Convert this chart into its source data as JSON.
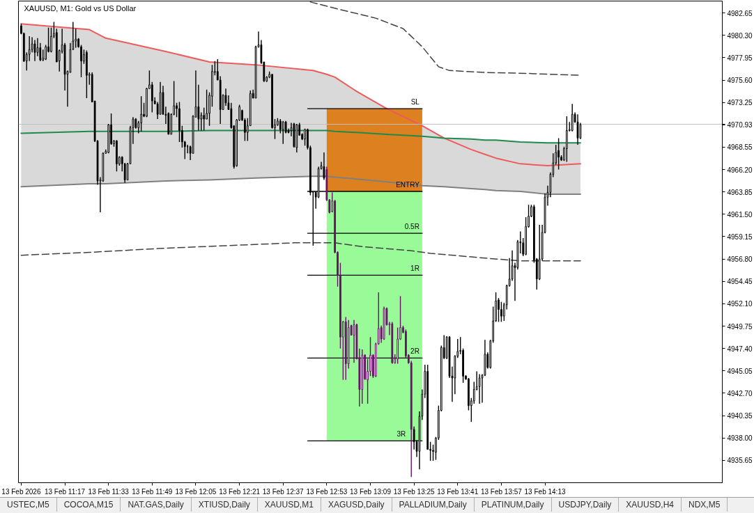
{
  "chart_data": {
    "type": "candlestick",
    "title": "XAUUSD, M1: Gold vs US Dollar",
    "x": [
      "2026-02-13T11:01",
      "2026-02-13T11:02",
      "2026-02-13T11:03",
      "2026-02-13T11:04",
      "2026-02-13T11:05",
      "2026-02-13T11:06",
      "2026-02-13T11:07",
      "2026-02-13T11:08",
      "2026-02-13T11:09",
      "2026-02-13T11:10",
      "2026-02-13T11:11",
      "2026-02-13T11:12",
      "2026-02-13T11:13",
      "2026-02-13T11:14",
      "2026-02-13T11:15",
      "2026-02-13T11:16",
      "2026-02-13T11:17",
      "2026-02-13T11:18",
      "2026-02-13T11:19",
      "2026-02-13T11:20",
      "2026-02-13T11:21",
      "2026-02-13T11:22",
      "2026-02-13T11:23",
      "2026-02-13T11:24",
      "2026-02-13T11:25",
      "2026-02-13T11:26",
      "2026-02-13T11:27",
      "2026-02-13T11:28",
      "2026-02-13T11:29",
      "2026-02-13T11:30",
      "2026-02-13T11:31",
      "2026-02-13T11:32",
      "2026-02-13T11:33",
      "2026-02-13T11:34",
      "2026-02-13T11:35",
      "2026-02-13T11:36",
      "2026-02-13T11:37",
      "2026-02-13T11:38",
      "2026-02-13T11:39",
      "2026-02-13T11:40",
      "2026-02-13T11:41",
      "2026-02-13T11:42",
      "2026-02-13T11:43",
      "2026-02-13T11:44",
      "2026-02-13T11:45",
      "2026-02-13T11:46",
      "2026-02-13T11:47",
      "2026-02-13T11:48",
      "2026-02-13T11:49",
      "2026-02-13T11:50",
      "2026-02-13T11:51",
      "2026-02-13T11:52",
      "2026-02-13T11:53",
      "2026-02-13T11:54",
      "2026-02-13T11:55",
      "2026-02-13T11:56",
      "2026-02-13T11:57",
      "2026-02-13T11:58",
      "2026-02-13T11:59",
      "2026-02-13T12:00",
      "2026-02-13T12:01",
      "2026-02-13T12:02",
      "2026-02-13T12:03",
      "2026-02-13T12:04",
      "2026-02-13T12:05",
      "2026-02-13T12:06",
      "2026-02-13T12:07",
      "2026-02-13T12:08",
      "2026-02-13T12:09",
      "2026-02-13T12:10",
      "2026-02-13T12:11",
      "2026-02-13T12:12",
      "2026-02-13T12:13",
      "2026-02-13T12:14",
      "2026-02-13T12:15",
      "2026-02-13T12:16",
      "2026-02-13T12:17",
      "2026-02-13T12:18",
      "2026-02-13T12:19",
      "2026-02-13T12:20",
      "2026-02-13T12:21",
      "2026-02-13T12:22",
      "2026-02-13T12:23",
      "2026-02-13T12:24",
      "2026-02-13T12:25",
      "2026-02-13T12:26",
      "2026-02-13T12:27",
      "2026-02-13T12:28",
      "2026-02-13T12:29",
      "2026-02-13T12:30",
      "2026-02-13T12:31",
      "2026-02-13T12:32",
      "2026-02-13T12:33",
      "2026-02-13T12:34",
      "2026-02-13T12:35",
      "2026-02-13T12:36",
      "2026-02-13T12:37",
      "2026-02-13T12:38",
      "2026-02-13T12:39",
      "2026-02-13T12:40",
      "2026-02-13T12:41",
      "2026-02-13T12:42",
      "2026-02-13T12:43",
      "2026-02-13T12:44",
      "2026-02-13T12:45",
      "2026-02-13T12:46",
      "2026-02-13T12:47",
      "2026-02-13T12:48",
      "2026-02-13T12:49",
      "2026-02-13T12:50",
      "2026-02-13T12:51",
      "2026-02-13T12:52",
      "2026-02-13T12:53",
      "2026-02-13T12:54",
      "2026-02-13T12:55",
      "2026-02-13T12:56",
      "2026-02-13T12:57",
      "2026-02-13T12:58",
      "2026-02-13T12:59",
      "2026-02-13T13:00",
      "2026-02-13T13:01",
      "2026-02-13T13:02",
      "2026-02-13T13:03",
      "2026-02-13T13:04",
      "2026-02-13T13:05",
      "2026-02-13T13:06",
      "2026-02-13T13:07",
      "2026-02-13T13:08",
      "2026-02-13T13:09",
      "2026-02-13T13:10",
      "2026-02-13T13:11",
      "2026-02-13T13:12",
      "2026-02-13T13:13",
      "2026-02-13T13:14",
      "2026-02-13T13:15",
      "2026-02-13T13:16",
      "2026-02-13T13:17",
      "2026-02-13T13:18",
      "2026-02-13T13:19",
      "2026-02-13T13:20",
      "2026-02-13T13:21",
      "2026-02-13T13:22",
      "2026-02-13T13:23",
      "2026-02-13T13:24",
      "2026-02-13T13:25",
      "2026-02-13T13:26",
      "2026-02-13T13:27",
      "2026-02-13T13:28",
      "2026-02-13T13:29",
      "2026-02-13T13:30",
      "2026-02-13T13:31",
      "2026-02-13T13:32",
      "2026-02-13T13:33",
      "2026-02-13T13:34",
      "2026-02-13T13:35",
      "2026-02-13T13:36",
      "2026-02-13T13:37",
      "2026-02-13T13:38",
      "2026-02-13T13:39",
      "2026-02-13T13:40",
      "2026-02-13T13:41",
      "2026-02-13T13:42",
      "2026-02-13T13:43",
      "2026-02-13T13:44",
      "2026-02-13T13:45",
      "2026-02-13T13:46",
      "2026-02-13T13:47",
      "2026-02-13T13:48",
      "2026-02-13T13:49",
      "2026-02-13T13:50",
      "2026-02-13T13:51",
      "2026-02-13T13:52",
      "2026-02-13T13:53",
      "2026-02-13T13:54",
      "2026-02-13T13:55",
      "2026-02-13T13:56",
      "2026-02-13T13:57",
      "2026-02-13T13:58",
      "2026-02-13T13:59",
      "2026-02-13T14:00",
      "2026-02-13T14:01",
      "2026-02-13T14:02",
      "2026-02-13T14:03",
      "2026-02-13T14:04",
      "2026-02-13T14:05",
      "2026-02-13T14:06",
      "2026-02-13T14:07",
      "2026-02-13T14:08",
      "2026-02-13T14:09",
      "2026-02-13T14:10",
      "2026-02-13T14:11",
      "2026-02-13T14:12",
      "2026-02-13T14:13",
      "2026-02-13T14:14",
      "2026-02-13T14:15",
      "2026-02-13T14:16",
      "2026-02-13T14:17",
      "2026-02-13T14:18",
      "2026-02-13T14:19",
      "2026-02-13T14:20",
      "2026-02-13T14:21",
      "2026-02-13T14:22",
      "2026-02-13T14:23",
      "2026-02-13T14:24",
      "2026-02-13T14:25",
      "2026-02-13T14:26"
    ],
    "ohlc": [
      [
        4981.3,
        4981.5,
        4980.4,
        4980.5
      ],
      [
        4980.5,
        4980.6,
        4977.5,
        4977.6
      ],
      [
        4977.6,
        4978.5,
        4976.6,
        4978.3
      ],
      [
        4978.3,
        4980.2,
        4977.6,
        4978.8
      ],
      [
        4978.8,
        4980.1,
        4978.5,
        4979.4
      ],
      [
        4979.4,
        4979.8,
        4977.6,
        4978.5
      ],
      [
        4978.5,
        4980.0,
        4978.1,
        4979.0
      ],
      [
        4979.0,
        4979.5,
        4977.6,
        4977.7
      ],
      [
        4977.7,
        4978.8,
        4977.6,
        4977.9
      ],
      [
        4977.8,
        4979.3,
        4977.7,
        4979.1
      ],
      [
        4979.1,
        4981.1,
        4978.5,
        4978.6
      ],
      [
        4978.6,
        4981.1,
        4978.5,
        4980.2
      ],
      [
        4980.2,
        4981.7,
        4980.0,
        4980.5
      ],
      [
        4980.6,
        4981.0,
        4977.5,
        4977.5
      ],
      [
        4977.6,
        4978.8,
        4976.5,
        4978.7
      ],
      [
        4978.6,
        4981.0,
        4978.4,
        4979.3
      ],
      [
        4979.3,
        4979.5,
        4974.5,
        4976.2
      ],
      [
        4976.2,
        4976.6,
        4972.8,
        4976.5
      ],
      [
        4976.4,
        4979.5,
        4976.4,
        4978.8
      ],
      [
        4978.8,
        4981.7,
        4978.8,
        4979.7
      ],
      [
        4979.7,
        4981.0,
        4979.0,
        4979.9
      ],
      [
        4979.9,
        4980.0,
        4979.0,
        4979.1
      ],
      [
        4979.1,
        4979.3,
        4975.9,
        4977.6
      ],
      [
        4977.6,
        4978.8,
        4977.3,
        4978.3
      ],
      [
        4978.5,
        4978.7,
        4973.7,
        4976.1
      ],
      [
        4976.1,
        4976.4,
        4975.1,
        4976.2
      ],
      [
        4976.2,
        4976.4,
        4973.3,
        4973.3
      ],
      [
        4973.4,
        4973.4,
        4969.1,
        4969.2
      ],
      [
        4969.2,
        4969.3,
        4964.6,
        4965.0
      ],
      [
        4965.0,
        4965.4,
        4961.7,
        4965.1
      ],
      [
        4965.0,
        4968.0,
        4964.9,
        4967.9
      ],
      [
        4967.9,
        4968.3,
        4967.9,
        4968.1
      ],
      [
        4968.0,
        4971.0,
        4967.9,
        4970.9
      ],
      [
        4970.9,
        4972.1,
        4968.8,
        4968.9
      ],
      [
        4968.9,
        4969.3,
        4968.6,
        4969.2
      ],
      [
        4969.2,
        4969.3,
        4966.0,
        4966.8
      ],
      [
        4966.8,
        4967.6,
        4966.6,
        4967.5
      ],
      [
        4967.5,
        4967.6,
        4966.0,
        4966.8
      ],
      [
        4966.8,
        4966.9,
        4964.8,
        4965.1
      ],
      [
        4965.1,
        4966.9,
        4965.1,
        4966.8
      ],
      [
        4966.8,
        4970.8,
        4966.8,
        4970.6
      ],
      [
        4970.6,
        4971.7,
        4968.9,
        4971.5
      ],
      [
        4971.5,
        4971.6,
        4970.5,
        4970.6
      ],
      [
        4970.6,
        4971.3,
        4970.0,
        4971.1
      ],
      [
        4971.1,
        4973.9,
        4970.2,
        4972.0
      ],
      [
        4972.0,
        4973.2,
        4971.7,
        4971.8
      ],
      [
        4971.8,
        4974.8,
        4971.7,
        4974.7
      ],
      [
        4974.7,
        4976.6,
        4974.7,
        4975.1
      ],
      [
        4975.1,
        4975.4,
        4972.2,
        4973.4
      ],
      [
        4973.4,
        4973.8,
        4973.1,
        4973.1
      ],
      [
        4973.1,
        4973.3,
        4971.5,
        4972.0
      ],
      [
        4972.0,
        4975.4,
        4972.0,
        4974.3
      ],
      [
        4974.3,
        4975.0,
        4972.0,
        4972.0
      ],
      [
        4972.0,
        4972.8,
        4971.0,
        4971.9
      ],
      [
        4972.1,
        4972.2,
        4969.9,
        4969.9
      ],
      [
        4969.9,
        4972.1,
        4969.9,
        4972.0
      ],
      [
        4972.0,
        4975.5,
        4971.9,
        4972.9
      ],
      [
        4972.9,
        4973.2,
        4971.7,
        4972.6
      ],
      [
        4972.6,
        4973.3,
        4969.1,
        4970.3
      ],
      [
        4970.3,
        4970.8,
        4968.5,
        4969.1
      ],
      [
        4969.1,
        4969.2,
        4967.3,
        4968.6
      ],
      [
        4968.6,
        4968.8,
        4967.9,
        4968.6
      ],
      [
        4968.6,
        4968.7,
        4967.2,
        4967.9
      ],
      [
        4967.9,
        4971.9,
        4967.9,
        4971.8
      ],
      [
        4971.7,
        4976.6,
        4971.7,
        4972.8
      ],
      [
        4972.8,
        4975.1,
        4970.3,
        4971.5
      ],
      [
        4971.5,
        4972.2,
        4970.3,
        4971.9
      ],
      [
        4971.9,
        4972.7,
        4970.3,
        4971.5
      ],
      [
        4971.5,
        4974.6,
        4971.5,
        4972.1
      ],
      [
        4972.1,
        4974.3,
        4970.8,
        4974.0
      ],
      [
        4973.9,
        4977.2,
        4972.8,
        4976.5
      ],
      [
        4976.4,
        4977.6,
        4976.1,
        4976.5
      ],
      [
        4976.5,
        4977.8,
        4975.6,
        4975.6
      ],
      [
        4975.6,
        4976.0,
        4971.0,
        4972.5
      ],
      [
        4972.5,
        4974.1,
        4972.5,
        4974.0
      ],
      [
        4974.0,
        4974.7,
        4972.9,
        4973.2
      ],
      [
        4973.2,
        4974.0,
        4972.5,
        4972.5
      ],
      [
        4972.6,
        4973.2,
        4970.5,
        4970.6
      ],
      [
        4970.8,
        4970.8,
        4966.3,
        4966.5
      ],
      [
        4966.6,
        4971.5,
        4966.5,
        4971.4
      ],
      [
        4971.4,
        4973.0,
        4971.3,
        4972.8
      ],
      [
        4972.4,
        4972.5,
        4971.3,
        4971.4
      ],
      [
        4971.4,
        4971.6,
        4969.2,
        4970.1
      ],
      [
        4970.1,
        4971.6,
        4969.2,
        4970.8
      ],
      [
        4970.8,
        4974.5,
        4970.8,
        4974.2
      ],
      [
        4974.2,
        4974.6,
        4973.7,
        4973.7
      ],
      [
        4973.7,
        4979.2,
        4973.7,
        4979.1
      ],
      [
        4979.1,
        4980.7,
        4979.0,
        4979.3
      ],
      [
        4979.3,
        4979.8,
        4977.3,
        4977.4
      ],
      [
        4977.5,
        4977.5,
        4975.4,
        4975.5
      ],
      [
        4975.5,
        4976.0,
        4975.4,
        4975.9
      ],
      [
        4975.9,
        4976.5,
        4975.8,
        4976.2
      ],
      [
        4976.2,
        4976.2,
        4970.5,
        4970.6
      ],
      [
        4970.6,
        4971.5,
        4969.4,
        4970.9
      ],
      [
        4970.9,
        4971.6,
        4970.8,
        4971.3
      ],
      [
        4971.3,
        4971.5,
        4970.0,
        4970.4
      ],
      [
        4970.4,
        4971.3,
        4968.9,
        4971.2
      ],
      [
        4971.2,
        4971.3,
        4970.0,
        4970.1
      ],
      [
        4970.3,
        4970.5,
        4970.0,
        4970.1
      ],
      [
        4970.3,
        4971.1,
        4969.7,
        4970.6
      ],
      [
        4971.0,
        4971.1,
        4968.5,
        4968.6
      ],
      [
        4968.5,
        4971.0,
        4968.0,
        4970.9
      ],
      [
        4970.9,
        4971.1,
        4969.8,
        4969.8
      ],
      [
        4969.9,
        4970.0,
        4969.3,
        4969.4
      ],
      [
        4969.4,
        4970.5,
        4968.7,
        4970.4
      ],
      [
        4970.4,
        4970.5,
        4968.3,
        4968.5
      ],
      [
        4968.5,
        4968.7,
        4963.5,
        4963.8
      ],
      [
        4963.8,
        4963.9,
        4958.2,
        4963.9
      ],
      [
        4963.8,
        4963.9,
        4962.1,
        4963.3
      ],
      [
        4963.3,
        4966.5,
        4963.2,
        4966.3
      ],
      [
        4966.3,
        4967.0,
        4966.2,
        4966.6
      ],
      [
        4966.5,
        4968.0,
        4965.1,
        4965.3
      ],
      [
        4966.2,
        4966.5,
        4962.9,
        4963.0
      ],
      [
        4963.0,
        4963.1,
        4961.6,
        4961.7
      ],
      [
        4961.8,
        4963.8,
        4961.7,
        4962.9
      ],
      [
        4962.9,
        4963.0,
        4957.4,
        4957.5
      ],
      [
        4957.5,
        4957.6,
        4953.9,
        4955.1
      ],
      [
        4955.1,
        4956.4,
        4947.4,
        4948.6
      ],
      [
        4948.6,
        4950.3,
        4944.1,
        4950.2
      ],
      [
        4950.2,
        4950.7,
        4944.1,
        4945.8
      ],
      [
        4945.8,
        4950.4,
        4945.3,
        4949.6
      ],
      [
        4949.8,
        4949.9,
        4948.8,
        4948.8
      ],
      [
        4948.8,
        4950.4,
        4945.9,
        4949.9
      ],
      [
        4949.9,
        4950.0,
        4946.3,
        4946.3
      ],
      [
        4946.4,
        4947.4,
        4941.3,
        4943.1
      ],
      [
        4943.1,
        4947.3,
        4941.6,
        4946.7
      ],
      [
        4946.7,
        4946.8,
        4944.1,
        4944.2
      ],
      [
        4944.1,
        4946.3,
        4941.6,
        4945.0
      ],
      [
        4945.0,
        4948.6,
        4944.5,
        4946.7
      ],
      [
        4946.7,
        4946.8,
        4944.3,
        4944.5
      ],
      [
        4944.5,
        4948.0,
        4944.4,
        4947.9
      ],
      [
        4947.9,
        4953.3,
        4947.8,
        4949.5
      ],
      [
        4949.6,
        4949.8,
        4948.0,
        4948.4
      ],
      [
        4948.4,
        4951.8,
        4948.3,
        4951.6
      ],
      [
        4951.6,
        4951.7,
        4949.8,
        4949.9
      ],
      [
        4949.9,
        4950.2,
        4948.8,
        4950.0
      ],
      [
        4950.0,
        4950.2,
        4945.8,
        4945.9
      ],
      [
        4945.9,
        4946.8,
        4945.8,
        4946.3
      ],
      [
        4946.3,
        4949.6,
        4945.8,
        4948.4
      ],
      [
        4948.4,
        4952.9,
        4948.3,
        4949.6
      ],
      [
        4949.6,
        4949.8,
        4949.0,
        4949.1
      ],
      [
        4949.2,
        4949.4,
        4946.4,
        4946.6
      ],
      [
        4946.7,
        4946.8,
        4945.8,
        4945.9
      ],
      [
        4945.9,
        4946.1,
        4933.9,
        4938.9
      ],
      [
        4938.9,
        4939.2,
        4936.8,
        4937.6
      ],
      [
        4937.6,
        4937.8,
        4936.0,
        4936.6
      ],
      [
        4936.6,
        4940.8,
        4934.7,
        4940.3
      ],
      [
        4940.3,
        4943.1,
        4939.9,
        4942.6
      ],
      [
        4942.6,
        4945.7,
        4942.2,
        4945.0
      ],
      [
        4945.0,
        4945.7,
        4936.8,
        4936.8
      ],
      [
        4936.8,
        4937.6,
        4935.6,
        4936.7
      ],
      [
        4936.7,
        4937.3,
        4935.6,
        4936.6
      ],
      [
        4936.5,
        4938.1,
        4935.7,
        4938.0
      ],
      [
        4938.0,
        4941.4,
        4937.8,
        4940.9
      ],
      [
        4940.9,
        4947.7,
        4940.8,
        4947.5
      ],
      [
        4947.5,
        4948.8,
        4946.3,
        4946.4
      ],
      [
        4946.4,
        4948.7,
        4946.3,
        4948.6
      ],
      [
        4948.6,
        4948.7,
        4944.3,
        4944.5
      ],
      [
        4944.5,
        4945.5,
        4941.8,
        4944.3
      ],
      [
        4944.3,
        4946.7,
        4942.6,
        4946.6
      ],
      [
        4946.6,
        4948.4,
        4946.4,
        4947.1
      ],
      [
        4947.1,
        4948.6,
        4946.8,
        4947.2
      ],
      [
        4947.2,
        4947.4,
        4943.8,
        4944.5
      ],
      [
        4944.5,
        4944.6,
        4944.1,
        4944.2
      ],
      [
        4944.2,
        4944.3,
        4940.9,
        4941.4
      ],
      [
        4941.4,
        4942.2,
        4939.7,
        4941.9
      ],
      [
        4941.9,
        4943.9,
        4941.6,
        4943.1
      ],
      [
        4943.1,
        4945.0,
        4943.0,
        4943.4
      ],
      [
        4943.4,
        4944.7,
        4941.6,
        4944.3
      ],
      [
        4944.3,
        4944.7,
        4941.7,
        4944.6
      ],
      [
        4944.6,
        4948.3,
        4944.5,
        4946.8
      ],
      [
        4946.8,
        4947.0,
        4945.3,
        4945.4
      ],
      [
        4945.4,
        4948.3,
        4945.3,
        4948.2
      ],
      [
        4948.2,
        4951.8,
        4948.0,
        4950.3
      ],
      [
        4950.3,
        4953.3,
        4950.2,
        4952.4
      ],
      [
        4952.5,
        4952.7,
        4950.2,
        4951.5
      ],
      [
        4951.5,
        4952.3,
        4950.2,
        4950.8
      ],
      [
        4950.8,
        4952.2,
        4950.3,
        4952.0
      ],
      [
        4952.0,
        4954.1,
        4951.5,
        4954.0
      ],
      [
        4954.0,
        4956.9,
        4953.9,
        4954.7
      ],
      [
        4954.7,
        4957.7,
        4954.5,
        4956.1
      ],
      [
        4956.1,
        4956.4,
        4952.4,
        4955.9
      ],
      [
        4955.9,
        4958.8,
        4955.7,
        4958.6
      ],
      [
        4958.6,
        4959.7,
        4957.4,
        4958.5
      ],
      [
        4958.5,
        4959.0,
        4957.1,
        4957.3
      ],
      [
        4957.3,
        4961.2,
        4957.2,
        4960.2
      ],
      [
        4960.2,
        4962.5,
        4960.1,
        4961.3
      ],
      [
        4961.3,
        4962.5,
        4961.2,
        4962.3
      ],
      [
        4962.3,
        4962.5,
        4956.4,
        4956.7
      ],
      [
        4956.8,
        4956.9,
        4953.6,
        4954.7
      ],
      [
        4954.7,
        4960.4,
        4954.6,
        4956.8
      ],
      [
        4956.8,
        4960.4,
        4956.6,
        4959.6
      ],
      [
        4959.6,
        4963.7,
        4959.5,
        4963.3
      ],
      [
        4963.3,
        4964.5,
        4962.4,
        4963.8
      ],
      [
        4963.8,
        4965.9,
        4963.3,
        4965.7
      ],
      [
        4965.7,
        4967.9,
        4965.4,
        4966.9
      ],
      [
        4966.9,
        4968.8,
        4966.7,
        4968.0
      ],
      [
        4968.2,
        4969.5,
        4966.2,
        4967.5
      ],
      [
        4967.5,
        4967.7,
        4967.1,
        4967.2
      ],
      [
        4967.2,
        4968.6,
        4967.1,
        4968.4
      ],
      [
        4968.4,
        4971.8,
        4967.0,
        4970.3
      ],
      [
        4970.3,
        4971.2,
        4970.2,
        4970.4
      ],
      [
        4970.3,
        4973.1,
        4970.2,
        4972.0
      ],
      [
        4972.0,
        4972.2,
        4971.1,
        4971.2
      ],
      [
        4971.2,
        4972.0,
        4968.8,
        4969.5
      ],
      [
        4969.5,
        4971.1,
        4969.4,
        4970.9
      ]
    ],
    "colors": [
      "#000000",
      "#000000",
      "#000000",
      "#000000",
      "#000000",
      "#000000",
      "#000000",
      "#000000",
      "#000000",
      "#000000",
      "#000000",
      "#000000",
      "#000000",
      "#000000",
      "#000000",
      "#000000",
      "#000000",
      "#000000",
      "#000000",
      "#000000",
      "#000000",
      "#000000",
      "#000000",
      "#000000",
      "#000000",
      "#000000",
      "#000000",
      "#000000",
      "#000000",
      "#000000",
      "#000000",
      "#000000",
      "#000000",
      "#000000",
      "#000000",
      "#000000",
      "#000000",
      "#000000",
      "#000000",
      "#000000",
      "#000000",
      "#000000",
      "#000000",
      "#000000",
      "#000000",
      "#000000",
      "#000000",
      "#000000",
      "#000000",
      "#000000",
      "#000000",
      "#000000",
      "#000000",
      "#000000",
      "#000000",
      "#000000",
      "#000000",
      "#000000",
      "#000000",
      "#000000",
      "#000000",
      "#000000",
      "#000000",
      "#000000",
      "#000000",
      "#000000",
      "#000000",
      "#000000",
      "#000000",
      "#000000",
      "#000000",
      "#000000",
      "#000000",
      "#000000",
      "#000000",
      "#000000",
      "#000000",
      "#000000",
      "#000000",
      "#000000",
      "#000000",
      "#000000",
      "#000000",
      "#000000",
      "#000000",
      "#000000",
      "#000000",
      "#000000",
      "#000000",
      "#000000",
      "#000000",
      "#000000",
      "#000000",
      "#000000",
      "#000000",
      "#000000",
      "#000000",
      "#000000",
      "#000000",
      "#000000",
      "#000000",
      "#000000",
      "#000000",
      "#000000",
      "#000000",
      "#000000",
      "#000000",
      "#000000",
      "#000000",
      "#000000",
      "#000000",
      "#000000",
      "#6b0f6b",
      "#6b0f6b",
      "#6b0f6b",
      "#6b0f6b",
      "#6b0f6b",
      "#6b0f6b",
      "#6b0f6b",
      "#6b0f6b",
      "#6b0f6b",
      "#6b0f6b",
      "#6b0f6b",
      "#6b0f6b",
      "#6b0f6b",
      "#6b0f6b",
      "#6b0f6b",
      "#6b0f6b",
      "#6b0f6b",
      "#6b0f6b",
      "#6b0f6b",
      "#6b0f6b",
      "#6b0f6b",
      "#6b0f6b",
      "#6b0f6b",
      "#6b0f6b",
      "#6b0f6b",
      "#6b0f6b",
      "#6b0f6b",
      "#6b0f6b",
      "#6b0f6b",
      "#6b0f6b",
      "#6b0f6b",
      "#6b0f6b",
      "#000000",
      "#000000",
      "#000000",
      "#000000",
      "#000000",
      "#000000",
      "#000000",
      "#000000",
      "#000000",
      "#000000",
      "#000000",
      "#000000",
      "#000000",
      "#000000",
      "#000000",
      "#000000",
      "#000000",
      "#000000",
      "#000000",
      "#000000",
      "#000000",
      "#000000",
      "#000000",
      "#000000",
      "#000000",
      "#000000",
      "#000000",
      "#000000",
      "#000000",
      "#000000",
      "#000000",
      "#000000",
      "#000000",
      "#000000",
      "#000000",
      "#000000",
      "#000000",
      "#000000",
      "#000000",
      "#000000",
      "#000000",
      "#000000",
      "#000000",
      "#000000",
      "#000000",
      "#000000",
      "#000000",
      "#000000",
      "#000000",
      "#000000",
      "#000000",
      "#000000",
      "#000000",
      "#000000",
      "#000000",
      "#000000",
      "#000000",
      "#000000",
      "#000000",
      "#000000",
      "#000000",
      "#000000"
    ],
    "xlim": [
      "2026-02-13T11:00",
      "2026-02-13T15:18"
    ],
    "xticks": [
      {
        "value": "2026-02-13T11:01",
        "label": "13 Feb 2026"
      },
      {
        "value": "2026-02-13T11:17",
        "label": "13 Feb 11:17"
      },
      {
        "value": "2026-02-13T11:33",
        "label": "13 Feb 11:33"
      },
      {
        "value": "2026-02-13T11:49",
        "label": "13 Feb 11:49"
      },
      {
        "value": "2026-02-13T12:05",
        "label": "13 Feb 12:05"
      },
      {
        "value": "2026-02-13T12:21",
        "label": "13 Feb 12:21"
      },
      {
        "value": "2026-02-13T12:37",
        "label": "13 Feb 12:37"
      },
      {
        "value": "2026-02-13T12:53",
        "label": "13 Feb 12:53"
      },
      {
        "value": "2026-02-13T13:09",
        "label": "13 Feb 13:09"
      },
      {
        "value": "2026-02-13T13:25",
        "label": "13 Feb 13:25"
      },
      {
        "value": "2026-02-13T13:41",
        "label": "13 Feb 13:41"
      },
      {
        "value": "2026-02-13T13:57",
        "label": "13 Feb 13:57"
      },
      {
        "value": "2026-02-13T14:13",
        "label": "13 Feb 14:13"
      }
    ],
    "ylim": [
      4933.3,
      4983.9
    ],
    "yticks": [
      4935.65,
      {
        "value": 4938.0,
        "label": "4938.00"
      },
      4940.35,
      {
        "value": 4942.7,
        "label": "4942.70"
      },
      4945.05,
      {
        "value": 4947.4,
        "label": "4947.40"
      },
      4949.75,
      {
        "value": 4952.1,
        "label": "4952.10"
      },
      4954.45,
      {
        "value": 4956.8,
        "label": "4956.80"
      },
      4959.15,
      {
        "value": 4961.5,
        "label": "4961.50"
      },
      4963.85,
      {
        "value": 4966.2,
        "label": "4966.20"
      },
      4968.55,
      {
        "value": 4970.9,
        "label": null
      },
      4973.25,
      {
        "value": 4975.6,
        "label": "4975.60"
      },
      4977.95,
      {
        "value": 4980.3,
        "label": "4980.30"
      },
      4982.65
    ],
    "ref_lines": [
      {
        "axis": "y",
        "value": 4970.93,
        "label": "4970.93",
        "color": "#c0c0c0"
      }
    ],
    "series": [
      {
        "type": "line",
        "color": "#808080",
        "x": [
          "2026-02-13T11:01",
          "2026-02-13T11:26",
          "2026-02-13T11:32",
          "2026-02-13T11:54",
          "2026-02-13T12:10",
          "2026-02-13T12:27",
          "2026-02-13T12:48",
          "2026-02-13T12:53",
          "2026-02-13T12:56",
          "2026-02-13T13:04",
          "2026-02-13T13:15",
          "2026-02-13T13:28",
          "2026-02-13T13:36",
          "2026-02-13T13:46",
          "2026-02-13T13:51",
          "2026-02-13T13:55",
          "2026-02-13T14:04",
          "2026-02-13T14:14",
          "2026-02-13T14:26"
        ],
        "values": [
          4964.4,
          4964.7,
          4964.7,
          4965.0,
          4965.1,
          4965.3,
          4965.5,
          4965.5,
          4965.4,
          4965.2,
          4964.9,
          4964.5,
          4964.4,
          4964.2,
          4964.1,
          4964.0,
          4963.9,
          4963.6,
          4963.6
        ],
        "lower": [
          4964.4,
          4964.7,
          4964.7,
          4965.0,
          4965.1,
          4965.3,
          4965.5,
          4965.5,
          4965.4,
          4965.2,
          4964.9,
          4964.5,
          4964.4,
          4964.2,
          4964.1,
          4964.0,
          4963.9,
          4963.6,
          4963.6
        ],
        "upper": [
          4981.5,
          4980.9,
          4980.0,
          4978.6,
          4977.5,
          4977.2,
          4976.6,
          4976.2,
          4975.9,
          4974.4,
          4972.6,
          4970.8,
          4969.5,
          4969.4,
          4969.3,
          4969.3,
          4969.1,
          4969.0,
          4969.0
        ]
      },
      {
        "type": "line",
        "color": "#dc8020",
        "x": [
          "2026-02-13T12:53",
          "2026-02-13T13:28"
        ],
        "values": [
          null,
          null
        ],
        "lower": [
          4963.9,
          4963.9
        ],
        "upper": [
          4972.6,
          4972.6
        ]
      },
      {
        "type": "line",
        "color": "#98fb98",
        "x": [
          "2026-02-13T12:53",
          "2026-02-13T13:28"
        ],
        "values": [
          null,
          null
        ],
        "lower": [
          4937.7,
          4937.7
        ],
        "upper": [
          4963.9,
          4963.9
        ]
      },
      {
        "type": "line",
        "color": "#f05a5a",
        "x": [
          "2026-02-13T11:01",
          "2026-02-13T11:26",
          "2026-02-13T11:32",
          "2026-02-13T11:54",
          "2026-02-13T12:10",
          "2026-02-13T12:27",
          "2026-02-13T12:48",
          "2026-02-13T12:53",
          "2026-02-13T12:56",
          "2026-02-13T13:04",
          "2026-02-13T13:15",
          "2026-02-13T13:28",
          "2026-02-13T13:36",
          "2026-02-13T13:46",
          "2026-02-13T13:51",
          "2026-02-13T13:55",
          "2026-02-13T14:04",
          "2026-02-13T14:14",
          "2026-02-13T14:26"
        ],
        "values": [
          4981.5,
          4980.9,
          4980.0,
          4978.6,
          4977.5,
          4977.2,
          4976.6,
          4976.2,
          4975.9,
          4974.4,
          4972.6,
          4970.8,
          4969.5,
          4968.3,
          4967.8,
          4967.4,
          4966.8,
          4966.6,
          4966.8
        ]
      },
      {
        "type": "line",
        "color": "#1f8a4c",
        "x": [
          "2026-02-13T11:01",
          "2026-02-13T11:26",
          "2026-02-13T11:32",
          "2026-02-13T11:54",
          "2026-02-13T12:10",
          "2026-02-13T12:27",
          "2026-02-13T12:48",
          "2026-02-13T12:53",
          "2026-02-13T12:56",
          "2026-02-13T13:04",
          "2026-02-13T13:15",
          "2026-02-13T13:28",
          "2026-02-13T13:36",
          "2026-02-13T13:46",
          "2026-02-13T13:51",
          "2026-02-13T13:55",
          "2026-02-13T14:04",
          "2026-02-13T14:14",
          "2026-02-13T14:26"
        ],
        "values": [
          4970.0,
          4970.2,
          4970.2,
          4970.2,
          4970.3,
          4970.3,
          4970.3,
          4970.3,
          4970.2,
          4970.1,
          4969.9,
          4969.7,
          4969.5,
          4969.4,
          4969.3,
          4969.3,
          4969.1,
          4969.0,
          4969.0
        ]
      },
      {
        "type": "line",
        "color": "#404040",
        "line_style": "dashed",
        "x": [
          "2026-02-13T12:47",
          "2026-02-13T12:58",
          "2026-02-13T13:11",
          "2026-02-13T13:21",
          "2026-02-13T13:28",
          "2026-02-13T13:34",
          "2026-02-13T13:38",
          "2026-02-13T13:51",
          "2026-02-13T14:06",
          "2026-02-13T14:26"
        ],
        "values": [
          4983.8,
          4983.0,
          4982.1,
          4981.0,
          4979.1,
          4977.0,
          4976.6,
          4976.4,
          4976.3,
          4976.1
        ]
      },
      {
        "type": "line",
        "color": "#404040",
        "line_style": "dashed",
        "x": [
          "2026-02-13T11:01",
          "2026-02-13T11:26",
          "2026-02-13T11:51",
          "2026-02-13T12:16",
          "2026-02-13T12:41",
          "2026-02-13T12:56",
          "2026-02-13T13:06",
          "2026-02-13T13:23",
          "2026-02-13T13:31",
          "2026-02-13T13:51",
          "2026-02-13T14:04",
          "2026-02-13T14:26"
        ],
        "values": [
          4957.2,
          4957.5,
          4957.9,
          4958.2,
          4958.5,
          4958.5,
          4958.1,
          4957.7,
          4957.4,
          4956.9,
          4956.6,
          4956.6
        ]
      },
      {
        "type": "line",
        "name": "SL",
        "color": "#000000",
        "x": [
          "2026-02-13T12:46",
          "2026-02-13T13:28"
        ],
        "values": [
          4972.6,
          4972.6
        ]
      },
      {
        "type": "line",
        "name": "ENTRY",
        "color": "#000000",
        "x": [
          "2026-02-13T12:46",
          "2026-02-13T13:28"
        ],
        "values": [
          4963.9,
          4963.9
        ]
      },
      {
        "type": "line",
        "name": "0.5R",
        "color": "#000000",
        "x": [
          "2026-02-13T12:46",
          "2026-02-13T13:28"
        ],
        "values": [
          4959.5,
          4959.5
        ]
      },
      {
        "type": "line",
        "name": "1R",
        "color": "#000000",
        "x": [
          "2026-02-13T12:46",
          "2026-02-13T13:28"
        ],
        "values": [
          4955.1,
          4955.1
        ]
      },
      {
        "type": "line",
        "name": "2R",
        "color": "#000000",
        "x": [
          "2026-02-13T12:46",
          "2026-02-13T13:28"
        ],
        "values": [
          4946.4,
          4946.4
        ]
      },
      {
        "type": "line",
        "name": "3R",
        "color": "#000000",
        "x": [
          "2026-02-13T12:46",
          "2026-02-13T13:28"
        ],
        "values": [
          4937.7,
          4937.7
        ]
      }
    ],
    "annotations": [
      "USTEC,M5",
      "COCOA,M15",
      "NAT.GAS,Daily",
      "XTIUSD,Daily",
      "XAUUSD,M1",
      "XAGUSD,Daily",
      "PALLADIUM,Daily",
      "PLATINUM,Daily",
      "USDJPY,Daily",
      "XAUUSD,H4",
      "NDX,M5"
    ]
  }
}
